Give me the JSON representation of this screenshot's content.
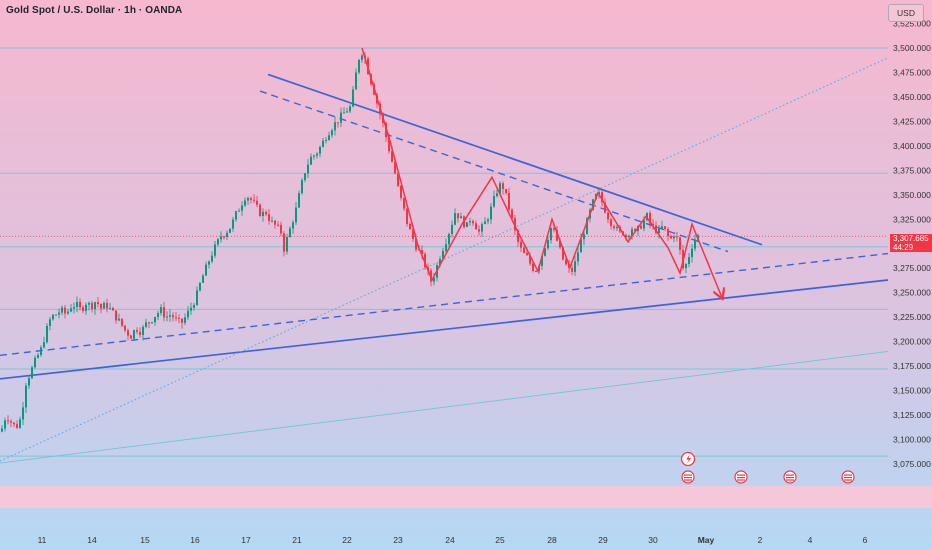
{
  "header": {
    "title": "Gold Spot / U.S. Dollar · 1h · OANDA",
    "currency": "USD"
  },
  "price_tag": {
    "price": "3,307.685",
    "countdown": "44:29"
  },
  "colors": {
    "bg_top": "#f6b8cf",
    "bg_bottom": "#b9d9f3",
    "up": "#089981",
    "down": "#f23645",
    "trend_blue": "#3d64d6",
    "zigzag_red": "#f23645",
    "hline": "#7ac7d6",
    "dotted_blue": "#58a8e6"
  },
  "chart_data": {
    "type": "candlestick",
    "title": "Gold Spot / U.S. Dollar · 1h · OANDA",
    "ylim": [
      3060,
      3530
    ],
    "y_ticks": [
      3075,
      3100,
      3125,
      3150,
      3175,
      3200,
      3225,
      3250,
      3275,
      3300,
      3325,
      3350,
      3375,
      3400,
      3425,
      3450,
      3475,
      3500,
      3525
    ],
    "y_tick_labels": [
      "3,075.000",
      "3,100.000",
      "3,125.000",
      "3,150.000",
      "3,175.000",
      "3,200.000",
      "3,225.000",
      "3,250.000",
      "3,275.000",
      "3,300.000",
      "3,325.000",
      "3,350.000",
      "3,375.000",
      "3,400.000",
      "3,425.000",
      "3,450.000",
      "3,475.000",
      "3,500.000",
      "3,525.000"
    ],
    "x_ticks": [
      "11",
      "14",
      "15",
      "16",
      "17",
      "21",
      "22",
      "23",
      "24",
      "25",
      "28",
      "29",
      "30",
      "May",
      "2",
      "4",
      "6"
    ],
    "current_price": 3307.685,
    "horizontal_levels": [
      3500,
      3372,
      3297,
      3233,
      3172,
      3083
    ],
    "close_path": [
      [
        0,
        3108
      ],
      [
        5,
        3125
      ],
      [
        10,
        3118
      ],
      [
        15,
        3112
      ],
      [
        20,
        3122
      ],
      [
        25,
        3158
      ],
      [
        30,
        3170
      ],
      [
        35,
        3182
      ],
      [
        40,
        3192
      ],
      [
        45,
        3210
      ],
      [
        50,
        3225
      ],
      [
        55,
        3228
      ],
      [
        60,
        3232
      ],
      [
        65,
        3228
      ],
      [
        70,
        3236
      ],
      [
        75,
        3238
      ],
      [
        80,
        3232
      ],
      [
        85,
        3240
      ],
      [
        90,
        3236
      ],
      [
        95,
        3242
      ],
      [
        100,
        3234
      ],
      [
        105,
        3238
      ],
      [
        110,
        3232
      ],
      [
        115,
        3225
      ],
      [
        120,
        3218
      ],
      [
        125,
        3210
      ],
      [
        130,
        3206
      ],
      [
        135,
        3214
      ],
      [
        140,
        3210
      ],
      [
        145,
        3218
      ],
      [
        150,
        3222
      ],
      [
        155,
        3228
      ],
      [
        160,
        3232
      ],
      [
        165,
        3225
      ],
      [
        170,
        3228
      ],
      [
        175,
        3222
      ],
      [
        180,
        3218
      ],
      [
        185,
        3226
      ],
      [
        190,
        3235
      ],
      [
        195,
        3245
      ],
      [
        200,
        3262
      ],
      [
        205,
        3275
      ],
      [
        210,
        3288
      ],
      [
        215,
        3298
      ],
      [
        220,
        3308
      ],
      [
        225,
        3312
      ],
      [
        230,
        3318
      ],
      [
        235,
        3330
      ],
      [
        240,
        3340
      ],
      [
        245,
        3350
      ],
      [
        250,
        3345
      ],
      [
        255,
        3338
      ],
      [
        260,
        3330
      ],
      [
        265,
        3332
      ],
      [
        270,
        3322
      ],
      [
        275,
        3318
      ],
      [
        280,
        3312
      ],
      [
        283,
        3295
      ],
      [
        286,
        3305
      ],
      [
        290,
        3318
      ],
      [
        295,
        3335
      ],
      [
        300,
        3358
      ],
      [
        305,
        3378
      ],
      [
        310,
        3388
      ],
      [
        315,
        3392
      ],
      [
        320,
        3400
      ],
      [
        325,
        3410
      ],
      [
        330,
        3418
      ],
      [
        335,
        3424
      ],
      [
        340,
        3430
      ],
      [
        345,
        3436
      ],
      [
        350,
        3440
      ],
      [
        354,
        3468
      ],
      [
        358,
        3490
      ],
      [
        362,
        3498
      ],
      [
        366,
        3480
      ],
      [
        370,
        3466
      ],
      [
        374,
        3452
      ],
      [
        378,
        3436
      ],
      [
        382,
        3422
      ],
      [
        386,
        3405
      ],
      [
        390,
        3388
      ],
      [
        394,
        3372
      ],
      [
        398,
        3352
      ],
      [
        402,
        3338
      ],
      [
        406,
        3322
      ],
      [
        410,
        3310
      ],
      [
        414,
        3300
      ],
      [
        418,
        3292
      ],
      [
        422,
        3284
      ],
      [
        426,
        3272
      ],
      [
        430,
        3262
      ],
      [
        434,
        3270
      ],
      [
        438,
        3285
      ],
      [
        442,
        3296
      ],
      [
        446,
        3306
      ],
      [
        450,
        3318
      ],
      [
        454,
        3332
      ],
      [
        458,
        3328
      ],
      [
        462,
        3322
      ],
      [
        466,
        3318
      ],
      [
        470,
        3328
      ],
      [
        474,
        3320
      ],
      [
        478,
        3312
      ],
      [
        482,
        3318
      ],
      [
        486,
        3325
      ],
      [
        490,
        3336
      ],
      [
        494,
        3348
      ],
      [
        498,
        3360
      ],
      [
        502,
        3358
      ],
      [
        506,
        3345
      ],
      [
        510,
        3328
      ],
      [
        514,
        3312
      ],
      [
        518,
        3298
      ],
      [
        522,
        3290
      ],
      [
        526,
        3286
      ],
      [
        530,
        3278
      ],
      [
        534,
        3272
      ],
      [
        538,
        3280
      ],
      [
        542,
        3292
      ],
      [
        546,
        3304
      ],
      [
        550,
        3316
      ],
      [
        554,
        3310
      ],
      [
        558,
        3296
      ],
      [
        562,
        3284
      ],
      [
        566,
        3276
      ],
      [
        570,
        3270
      ],
      [
        574,
        3280
      ],
      [
        578,
        3296
      ],
      [
        582,
        3310
      ],
      [
        586,
        3322
      ],
      [
        590,
        3336
      ],
      [
        594,
        3348
      ],
      [
        598,
        3350
      ],
      [
        602,
        3340
      ],
      [
        606,
        3330
      ],
      [
        610,
        3322
      ],
      [
        614,
        3318
      ],
      [
        618,
        3310
      ],
      [
        622,
        3312
      ],
      [
        626,
        3306
      ],
      [
        630,
        3318
      ],
      [
        634,
        3310
      ],
      [
        638,
        3316
      ],
      [
        642,
        3322
      ],
      [
        646,
        3328
      ],
      [
        650,
        3318
      ],
      [
        654,
        3315
      ],
      [
        658,
        3312
      ],
      [
        662,
        3318
      ],
      [
        666,
        3308
      ],
      [
        670,
        3305
      ],
      [
        674,
        3312
      ],
      [
        678,
        3298
      ],
      [
        682,
        3275
      ],
      [
        686,
        3280
      ],
      [
        690,
        3296
      ],
      [
        694,
        3305
      ],
      [
        697,
        3307.685
      ]
    ],
    "trend_lines": [
      {
        "name": "",
        "style": "solid",
        "color": "blue",
        "points": [
          [
            268,
            3473
          ],
          [
            762,
            3299
          ]
        ]
      },
      {
        "name": "",
        "style": "dashed",
        "color": "blue",
        "points": [
          [
            260,
            3456
          ],
          [
            728,
            3292
          ]
        ]
      },
      {
        "name": "",
        "style": "solid",
        "color": "blue",
        "points": [
          [
            0,
            3162
          ],
          [
            888,
            3263
          ]
        ]
      },
      {
        "name": "",
        "style": "dashed",
        "color": "blue",
        "points": [
          [
            0,
            3186
          ],
          [
            888,
            3290
          ]
        ]
      },
      {
        "name": "",
        "style": "dotted",
        "color": "light-blue",
        "points": [
          [
            0,
            3078
          ],
          [
            888,
            3490
          ]
        ]
      },
      {
        "name": "",
        "style": "thin",
        "color": "cyan",
        "points": [
          [
            0,
            3076
          ],
          [
            888,
            3190
          ]
        ]
      }
    ],
    "zigzag": [
      [
        362,
        3500
      ],
      [
        390,
        3405
      ],
      [
        418,
        3298
      ],
      [
        432,
        3263
      ],
      [
        462,
        3320
      ],
      [
        492,
        3368
      ],
      [
        515,
        3318
      ],
      [
        538,
        3272
      ],
      [
        552,
        3325
      ],
      [
        570,
        3276
      ],
      [
        598,
        3352
      ],
      [
        628,
        3302
      ],
      [
        646,
        3328
      ],
      [
        668,
        3296
      ],
      [
        680,
        3270
      ],
      [
        692,
        3320
      ],
      [
        722,
        3245
      ]
    ]
  }
}
